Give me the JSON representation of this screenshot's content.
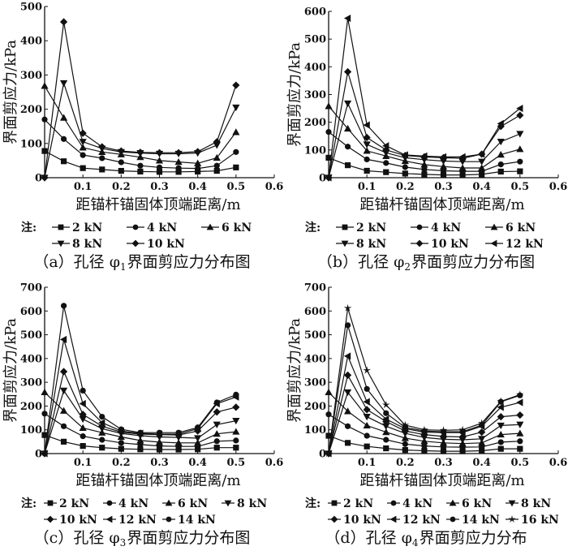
{
  "chart_data": [
    {
      "type": "line",
      "title": "",
      "caption": {
        "prefix": "（a）孔径 φ",
        "sub": "1",
        "suffix": "界面剪应力分布图"
      },
      "xlabel": "距锚杆锚固体顶端距离/m",
      "ylabel": "界面剪应力/kPa",
      "xlim": [
        0,
        0.6
      ],
      "ylim": [
        0,
        500
      ],
      "xticks": [
        "0.1",
        "0.2",
        "0.3",
        "0.4",
        "0.5",
        "0.6"
      ],
      "yticks": [
        "0",
        "100",
        "200",
        "300",
        "400",
        "500"
      ],
      "legend_note": "注:",
      "x": [
        0,
        0.05,
        0.1,
        0.15,
        0.2,
        0.25,
        0.3,
        0.35,
        0.4,
        0.45,
        0.5
      ],
      "series": [
        {
          "name": "2 kN",
          "marker": "square",
          "values": [
            78,
            48,
            28,
            24,
            20,
            18,
            17,
            17,
            18,
            20,
            30
          ]
        },
        {
          "name": "4 kN",
          "marker": "circle",
          "values": [
            170,
            113,
            66,
            57,
            45,
            35,
            30,
            28,
            27,
            35,
            75
          ]
        },
        {
          "name": "6 kN",
          "marker": "triangle-up",
          "values": [
            268,
            175,
            88,
            75,
            68,
            60,
            50,
            46,
            42,
            58,
            133
          ]
        },
        {
          "name": "8 kN",
          "marker": "triangle-down",
          "values": [
            0,
            276,
            105,
            85,
            75,
            72,
            70,
            70,
            72,
            95,
            205
          ]
        },
        {
          "name": "10 kN",
          "marker": "diamond",
          "values": [
            0,
            455,
            130,
            90,
            78,
            74,
            73,
            73,
            76,
            105,
            270
          ]
        }
      ]
    },
    {
      "type": "line",
      "title": "",
      "caption": {
        "prefix": "（b）孔径 φ",
        "sub": "2",
        "suffix": "界面剪应力分布图"
      },
      "xlabel": "距锚杆锚固体顶端距离/m",
      "ylabel": "界面剪应力/kPa",
      "xlim": [
        0,
        0.6
      ],
      "ylim": [
        0,
        600
      ],
      "xticks": [
        "0.1",
        "0.2",
        "0.3",
        "0.4",
        "0.5",
        "0.6"
      ],
      "yticks": [
        "0",
        "100",
        "200",
        "300",
        "400",
        "500",
        "600"
      ],
      "legend_note": "注:",
      "x": [
        0,
        0.05,
        0.1,
        0.15,
        0.2,
        0.25,
        0.3,
        0.35,
        0.4,
        0.45,
        0.5
      ],
      "series": [
        {
          "name": "2 kN",
          "marker": "square",
          "values": [
            72,
            45,
            25,
            20,
            15,
            12,
            10,
            10,
            12,
            22,
            23
          ]
        },
        {
          "name": "4 kN",
          "marker": "circle",
          "values": [
            165,
            112,
            66,
            53,
            38,
            30,
            25,
            23,
            23,
            48,
            58
          ]
        },
        {
          "name": "6 kN",
          "marker": "triangle-up",
          "values": [
            258,
            177,
            97,
            78,
            60,
            47,
            40,
            35,
            35,
            83,
            103
          ]
        },
        {
          "name": "8 kN",
          "marker": "triangle-down",
          "values": [
            0,
            268,
            120,
            90,
            72,
            65,
            60,
            58,
            58,
            130,
            158
          ]
        },
        {
          "name": "10 kN",
          "marker": "diamond",
          "values": [
            0,
            382,
            145,
            100,
            80,
            75,
            72,
            70,
            85,
            185,
            225
          ]
        },
        {
          "name": "12 kN",
          "marker": "triangle-left",
          "values": [
            0,
            575,
            190,
            115,
            82,
            78,
            75,
            75,
            85,
            195,
            250
          ]
        }
      ]
    },
    {
      "type": "line",
      "title": "",
      "caption": {
        "prefix": "（c）孔径 φ",
        "sub": "3",
        "suffix": "界面剪应力分布图"
      },
      "xlabel": "距锚杆锚固体顶端距离/m",
      "ylabel": "界面剪应力/kPa",
      "xlim": [
        0,
        0.6
      ],
      "ylim": [
        0,
        700
      ],
      "xticks": [
        "0.1",
        "0.2",
        "0.3",
        "0.4",
        "0.5",
        "0.6"
      ],
      "yticks": [
        "0",
        "100",
        "200",
        "300",
        "400",
        "500",
        "600",
        "700"
      ],
      "legend_note": "注:",
      "x": [
        0,
        0.05,
        0.1,
        0.15,
        0.2,
        0.25,
        0.3,
        0.35,
        0.4,
        0.45,
        0.5
      ],
      "series": [
        {
          "name": "2 kN",
          "marker": "square",
          "values": [
            78,
            50,
            32,
            25,
            20,
            18,
            17,
            17,
            18,
            25,
            25
          ]
        },
        {
          "name": "4 kN",
          "marker": "circle",
          "values": [
            168,
            115,
            73,
            58,
            45,
            38,
            32,
            30,
            30,
            52,
            55
          ]
        },
        {
          "name": "6 kN",
          "marker": "triangle-up",
          "values": [
            258,
            180,
            108,
            88,
            70,
            55,
            48,
            45,
            45,
            83,
            92
          ]
        },
        {
          "name": "8 kN",
          "marker": "triangle-down",
          "values": [
            0,
            265,
            145,
            105,
            85,
            75,
            70,
            68,
            65,
            122,
            138
          ]
        },
        {
          "name": "10 kN",
          "marker": "diamond",
          "values": [
            0,
            345,
            165,
            115,
            90,
            82,
            80,
            78,
            95,
            175,
            195
          ]
        },
        {
          "name": "12 kN",
          "marker": "triangle-left",
          "values": [
            0,
            480,
            210,
            130,
            95,
            85,
            82,
            82,
            105,
            210,
            238
          ]
        },
        {
          "name": "14 kN",
          "marker": "circle",
          "values": [
            0,
            622,
            265,
            155,
            102,
            88,
            88,
            88,
            110,
            215,
            248
          ]
        }
      ]
    },
    {
      "type": "line",
      "title": "",
      "caption": {
        "prefix": "（d）孔径 φ",
        "sub": "4",
        "suffix": "界面剪应力分布"
      },
      "xlabel": "距锚杆锚固体顶端距离/m",
      "ylabel": "界面剪应力/kPa",
      "xlim": [
        0,
        0.6
      ],
      "ylim": [
        0,
        700
      ],
      "xticks": [
        "0.1",
        "0.2",
        "0.3",
        "0.4",
        "0.5",
        "0.6"
      ],
      "yticks": [
        "0",
        "100",
        "200",
        "300",
        "400",
        "500",
        "600",
        "700"
      ],
      "legend_note": "注:",
      "x": [
        0,
        0.05,
        0.1,
        0.15,
        0.2,
        0.25,
        0.3,
        0.35,
        0.4,
        0.45,
        0.5
      ],
      "series": [
        {
          "name": "2 kN",
          "marker": "square",
          "values": [
            75,
            45,
            30,
            22,
            15,
            12,
            10,
            10,
            12,
            20,
            20
          ]
        },
        {
          "name": "4 kN",
          "marker": "circle",
          "values": [
            165,
            115,
            75,
            58,
            40,
            32,
            28,
            27,
            28,
            48,
            52
          ]
        },
        {
          "name": "6 kN",
          "marker": "triangle-up",
          "values": [
            258,
            178,
            118,
            90,
            65,
            52,
            45,
            42,
            45,
            80,
            85
          ]
        },
        {
          "name": "8 kN",
          "marker": "triangle-down",
          "values": [
            0,
            258,
            155,
            115,
            85,
            68,
            60,
            58,
            62,
            118,
            122
          ]
        },
        {
          "name": "10 kN",
          "marker": "diamond",
          "values": [
            0,
            330,
            185,
            135,
            95,
            80,
            72,
            70,
            90,
            155,
            162
          ]
        },
        {
          "name": "12 kN",
          "marker": "triangle-left",
          "values": [
            0,
            410,
            218,
            145,
            105,
            90,
            88,
            88,
            115,
            195,
            215
          ]
        },
        {
          "name": "14 kN",
          "marker": "circle",
          "values": [
            0,
            540,
            272,
            170,
            110,
            95,
            92,
            92,
            120,
            218,
            245
          ]
        },
        {
          "name": "16 kN",
          "marker": "star",
          "values": [
            0,
            612,
            350,
            205,
            120,
            100,
            98,
            100,
            128,
            220,
            248
          ]
        }
      ]
    }
  ]
}
